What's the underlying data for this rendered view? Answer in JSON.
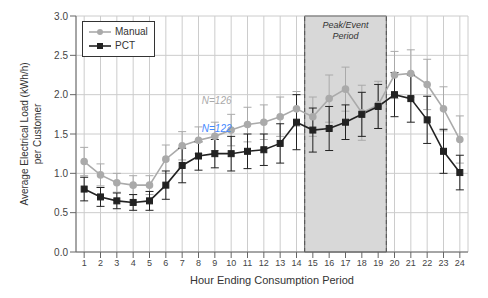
{
  "chart_data": {
    "type": "line",
    "xlabel": "Hour Ending Consumption Period",
    "ylabel": "Average Electrical Load (kWh/h)\nper Customer",
    "x": [
      1,
      2,
      3,
      4,
      5,
      6,
      7,
      8,
      9,
      10,
      11,
      12,
      13,
      14,
      15,
      16,
      17,
      18,
      19,
      20,
      21,
      22,
      23,
      24
    ],
    "xlim": [
      0.5,
      24.5
    ],
    "xticks": [
      1,
      2,
      3,
      4,
      5,
      6,
      7,
      8,
      9,
      10,
      11,
      12,
      13,
      14,
      15,
      16,
      17,
      18,
      19,
      20,
      21,
      22,
      23,
      24
    ],
    "ylim": [
      0.0,
      3.0
    ],
    "yticks": [
      {
        "value": 0.0,
        "label": "0.0"
      },
      0.5,
      {
        "value": 1.0,
        "label": "1.0"
      },
      1.5,
      {
        "value": 2.0,
        "label": "2.0"
      },
      2.5,
      {
        "value": 3.0,
        "label": "3.0"
      }
    ],
    "grid": true,
    "legend": "upper left",
    "series": [
      {
        "name": "Manual",
        "color": "#aaaaaa",
        "marker": "circle",
        "values": [
          1.15,
          0.98,
          0.88,
          0.85,
          0.85,
          1.18,
          1.35,
          1.42,
          1.47,
          1.55,
          1.62,
          1.65,
          1.72,
          1.82,
          1.72,
          1.95,
          2.07,
          1.77,
          1.87,
          2.25,
          2.27,
          2.13,
          1.82,
          1.43
        ],
        "errors": [
          0.18,
          0.14,
          0.12,
          0.12,
          0.12,
          0.18,
          0.18,
          0.17,
          0.18,
          0.2,
          0.22,
          0.22,
          0.25,
          0.22,
          0.25,
          0.3,
          0.28,
          0.35,
          0.3,
          0.3,
          0.3,
          0.32,
          0.28,
          0.3
        ]
      },
      {
        "name": "PCT",
        "color": "#222222",
        "marker": "square",
        "values": [
          0.8,
          0.7,
          0.65,
          0.63,
          0.65,
          0.85,
          1.1,
          1.22,
          1.25,
          1.25,
          1.28,
          1.3,
          1.38,
          1.65,
          1.55,
          1.57,
          1.65,
          1.75,
          1.85,
          2.0,
          1.95,
          1.68,
          1.28,
          1.01
        ],
        "errors": [
          0.15,
          0.12,
          0.1,
          0.1,
          0.12,
          0.18,
          0.22,
          0.18,
          0.18,
          0.22,
          0.22,
          0.2,
          0.25,
          0.35,
          0.28,
          0.28,
          0.22,
          0.28,
          0.28,
          0.28,
          0.3,
          0.3,
          0.28,
          0.22
        ]
      }
    ],
    "shaded_regions": [
      {
        "x_start": 14.5,
        "x_end": 19.5,
        "label": "Peak/Event\nPeriod",
        "color": "#d8d8d8"
      }
    ],
    "annotations": [
      {
        "text": "N=126",
        "x": 8.2,
        "y": 1.88,
        "color": "#aaaaaa"
      },
      {
        "text": "N=122",
        "x": 8.2,
        "y": 1.52,
        "color": "#4488ff"
      }
    ]
  }
}
